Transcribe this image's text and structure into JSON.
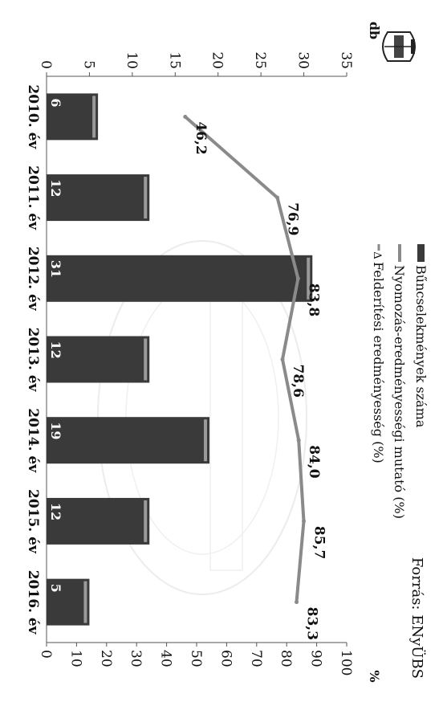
{
  "chart_data": {
    "type": "bar",
    "source": "Forrás: ENyÜBS",
    "categories": [
      "2010. év",
      "2011. év",
      "2012. év",
      "2013. év",
      "2014. év",
      "2015. év",
      "2016. év"
    ],
    "series": [
      {
        "name": "Bűncselekmények száma",
        "type": "bar",
        "axis": "left",
        "values": [
          6,
          12,
          31,
          12,
          19,
          12,
          5
        ],
        "labels": [
          "6",
          "12",
          "31",
          "12",
          "19",
          "12",
          "5"
        ],
        "color": "#3a3a3a"
      },
      {
        "name": "Nyomozás-eredményességi mutató (%)",
        "type": "line",
        "axis": "right",
        "values": [
          46.2,
          76.9,
          83.8,
          78.6,
          84.0,
          85.7,
          83.3
        ],
        "labels": [
          "46,2",
          "76,9",
          "83,8",
          "78,6",
          "84,0",
          "85,7",
          "83,3"
        ],
        "color": "#8a8a8a"
      }
    ],
    "legend_extra": "Felderítési eredményesség (%)",
    "left_axis": {
      "unit": "db",
      "range": [
        0,
        35
      ],
      "ticks": [
        "0",
        "5",
        "10",
        "15",
        "20",
        "25",
        "30",
        "35"
      ]
    },
    "right_axis": {
      "unit": "%",
      "range": [
        0,
        100
      ],
      "ticks": [
        "0",
        "10",
        "20",
        "30",
        "40",
        "50",
        "60",
        "70",
        "80",
        "90",
        "100"
      ]
    },
    "legend_position": "top-right",
    "orientation": "rotated 90° clockwise"
  }
}
